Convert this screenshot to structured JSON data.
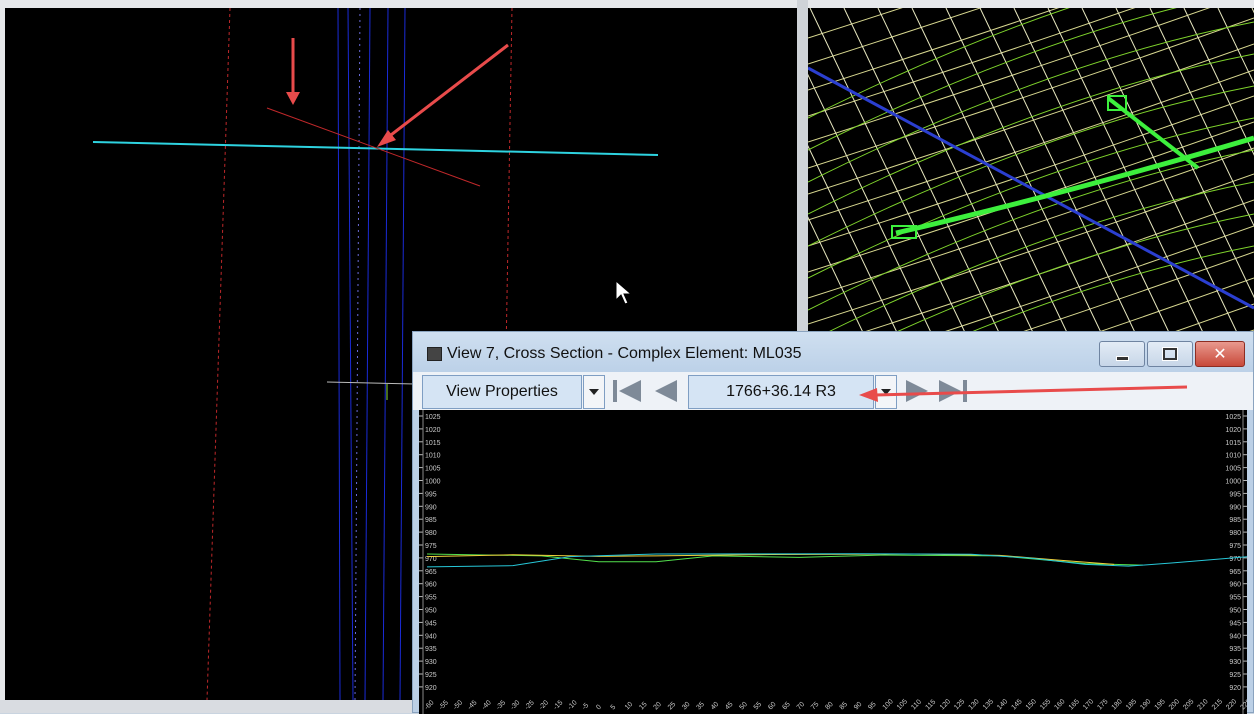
{
  "window": {
    "title": "View 7, Cross Section - Complex Element: ML035",
    "icon": "view-window-icon",
    "controls": [
      "minimize-icon",
      "maximize-icon",
      "close-icon"
    ],
    "close_glyph": "✕"
  },
  "toolbar": {
    "view_properties_label": "View Properties",
    "station_value": "1766+36.14 R3",
    "icons": [
      "first-station-icon",
      "previous-station-icon",
      "next-station-icon",
      "last-station-icon"
    ]
  },
  "cross_section": {
    "y_axis_ticks": [
      "1025",
      "1020",
      "1015",
      "1010",
      "1005",
      "1000",
      "995",
      "990",
      "985",
      "980",
      "975",
      "970",
      "965",
      "960",
      "955",
      "950",
      "945",
      "940",
      "935",
      "930",
      "925",
      "920"
    ],
    "x_axis_ticks": [
      "-60",
      "-55",
      "-50",
      "-45",
      "-40",
      "-35",
      "-30",
      "-25",
      "-20",
      "-15",
      "-10",
      "-5",
      "0",
      "5",
      "10",
      "15",
      "20",
      "25",
      "30",
      "35",
      "40",
      "45",
      "50",
      "55",
      "60",
      "65",
      "70",
      "75",
      "80",
      "85",
      "90",
      "95",
      "100",
      "105",
      "110",
      "115",
      "120",
      "125",
      "130",
      "135",
      "140",
      "145",
      "150",
      "155",
      "160",
      "165",
      "170",
      "175",
      "180",
      "185",
      "190",
      "195",
      "200",
      "205",
      "210",
      "215",
      "220",
      "225"
    ],
    "line_colors": {
      "existing_ground": "#27c7d8",
      "proposed": "#f0d23c",
      "alt": "#53e04d"
    }
  },
  "colors": {
    "annotation_arrow": "#e84b4b",
    "alignment_line": "#2ed3e0"
  }
}
